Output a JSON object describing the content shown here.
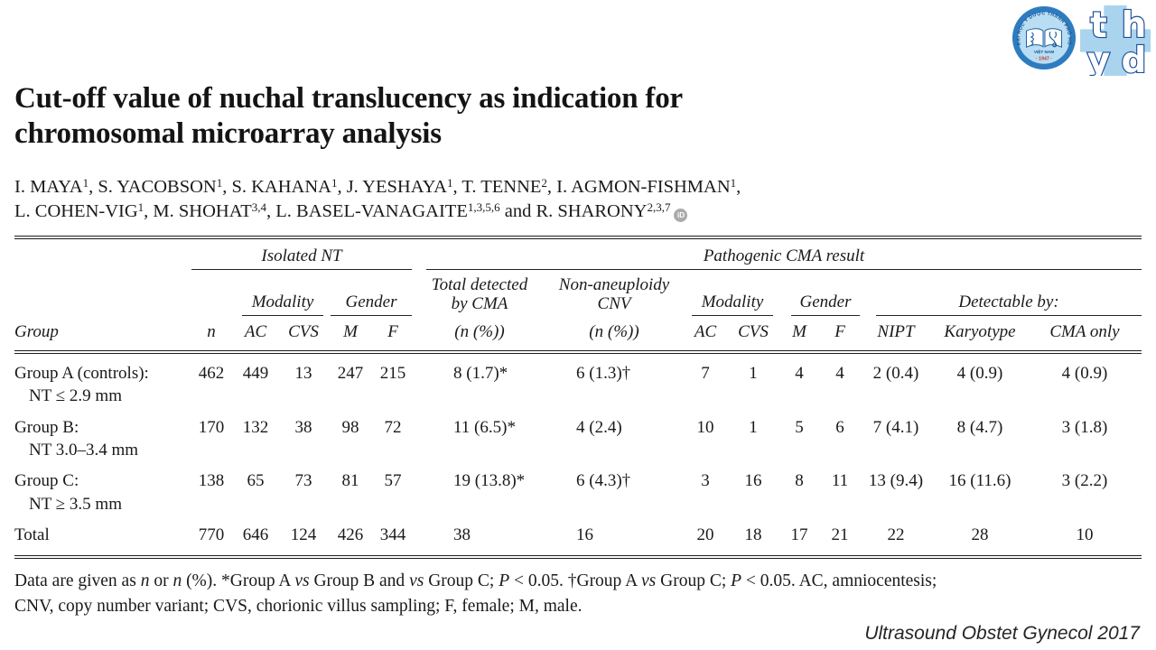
{
  "logos": {
    "seal": {
      "ring_text": "ĐẠI HỌC Y DƯỢC THÀNH PHỐ HỒ CHÍ MINH",
      "country": "VIỆT NAM",
      "year": "· 1947 ·",
      "ring_color": "#2e7cc0",
      "inner_color": "#b9ddf3",
      "text_color": "#14518f",
      "year_color": "#c23b2e"
    },
    "monogram": {
      "letters": [
        "t",
        "h",
        "y",
        "d"
      ],
      "bg_color": "#aad4ee",
      "fg_color": "#1b4e9b"
    }
  },
  "title": {
    "lines": [
      "Cut-off value of nuchal translucency as indication for",
      "chromosomal microarray analysis"
    ]
  },
  "authors": {
    "lines": [
      [
        {
          "t": "I. MAYA"
        },
        {
          "s": "1"
        },
        {
          "t": ", S. YACOBSON"
        },
        {
          "s": "1"
        },
        {
          "t": ", S. KAHANA"
        },
        {
          "s": "1"
        },
        {
          "t": ", J. YESHAYA"
        },
        {
          "s": "1"
        },
        {
          "t": ", T. TENNE"
        },
        {
          "s": "2"
        },
        {
          "t": ", I. AGMON-FISHMAN"
        },
        {
          "s": "1"
        },
        {
          "t": ","
        }
      ],
      [
        {
          "t": "L. COHEN-VIG"
        },
        {
          "s": "1"
        },
        {
          "t": ", M. SHOHAT"
        },
        {
          "s": "3,4"
        },
        {
          "t": ", L. BASEL-VANAGAITE"
        },
        {
          "s": "1,3,5,6"
        },
        {
          "t": " and R. SHARONY"
        },
        {
          "s": "2,3,7"
        }
      ]
    ],
    "orcid_label": "iD"
  },
  "table": {
    "top_spanners": [
      {
        "label": "Isolated NT",
        "colspan": 5,
        "rule_class": "sr-tight"
      },
      {
        "label": "Pathogenic CMA result",
        "colspan": 9,
        "rule_class": "sr-left14"
      }
    ],
    "sub_spanners": [
      {
        "lines": [
          "Modality"
        ],
        "colspan": 2,
        "rule": true,
        "rule_class": "sr-left8"
      },
      {
        "lines": [
          "Gender"
        ],
        "colspan": 2,
        "rule": true,
        "rule_class": "sr-tight"
      },
      {
        "lines": [
          "Total detected",
          "by CMA"
        ],
        "colspan": 1,
        "rule": false
      },
      {
        "lines": [
          "Non-aneuploidy",
          "CNV"
        ],
        "colspan": 1,
        "rule": false
      },
      {
        "lines": [
          "Modality"
        ],
        "colspan": 2,
        "rule": true,
        "rule_class": "sr-left8"
      },
      {
        "lines": [
          "Gender"
        ],
        "colspan": 2,
        "rule": true,
        "rule_class": "sr-left14"
      },
      {
        "lines": [
          "Detectable by:"
        ],
        "colspan": 3,
        "rule": true,
        "rule_class": "sr-left18"
      }
    ],
    "col_headers": [
      "Group",
      "n",
      "AC",
      "CVS",
      "M",
      "F",
      "(n (%))",
      "(n (%))",
      "AC",
      "CVS",
      "M",
      "F",
      "NIPT",
      "Karyotype",
      "CMA only"
    ],
    "rows": [
      {
        "group": [
          "Group A (controls):",
          "NT ≤ 2.9 mm"
        ],
        "values": [
          "462",
          "449",
          "13",
          "247",
          "215",
          "8 (1.7)*",
          "6 (1.3)†",
          "7",
          "1",
          "4",
          "4",
          "2 (0.4)",
          "4 (0.9)",
          "4 (0.9)"
        ]
      },
      {
        "group": [
          "Group B:",
          "NT 3.0–3.4 mm"
        ],
        "values": [
          "170",
          "132",
          "38",
          "98",
          "72",
          "11 (6.5)*",
          "4 (2.4)",
          "10",
          "1",
          "5",
          "6",
          "7 (4.1)",
          "8 (4.7)",
          "3 (1.8)"
        ]
      },
      {
        "group": [
          "Group C:",
          "NT ≥ 3.5 mm"
        ],
        "values": [
          "138",
          "65",
          "73",
          "81",
          "57",
          "19 (13.8)*",
          "6 (4.3)†",
          "3",
          "16",
          "8",
          "11",
          "13 (9.4)",
          "16 (11.6)",
          "3 (2.2)"
        ]
      },
      {
        "group": [
          "Total"
        ],
        "values": [
          "770",
          "646",
          "124",
          "426",
          "344",
          "38",
          "16",
          "20",
          "18",
          "17",
          "21",
          "22",
          "28",
          "10"
        ]
      }
    ]
  },
  "footnote": {
    "lines": [
      [
        {
          "t": "Data are given as "
        },
        {
          "t": "n",
          "i": true
        },
        {
          "t": " or "
        },
        {
          "t": "n",
          "i": true
        },
        {
          "t": " (%). *Group A "
        },
        {
          "t": "vs",
          "i": true
        },
        {
          "t": " Group B and "
        },
        {
          "t": "vs",
          "i": true
        },
        {
          "t": " Group C; "
        },
        {
          "t": "P",
          "i": true
        },
        {
          "t": " < 0.05. †Group A "
        },
        {
          "t": "vs",
          "i": true
        },
        {
          "t": " Group C; "
        },
        {
          "t": "P",
          "i": true
        },
        {
          "t": " < 0.05. AC, amniocentesis;"
        }
      ],
      [
        {
          "t": "CNV, copy number variant; CVS, chorionic villus sampling; F, female; M, male."
        }
      ]
    ]
  },
  "citation": {
    "text": "Ultrasound Obstet Gynecol 2017"
  }
}
